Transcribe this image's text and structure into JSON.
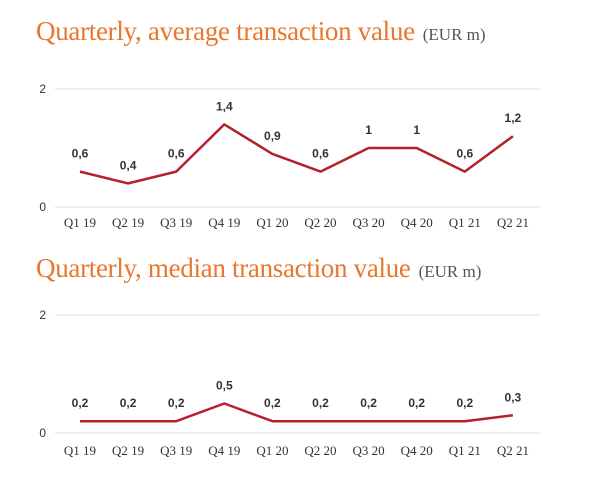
{
  "chart_data": [
    {
      "type": "line",
      "title": "Quarterly, average transaction value",
      "unit": "(EUR m)",
      "categories": [
        "Q1 19",
        "Q2 19",
        "Q3 19",
        "Q4 19",
        "Q1 20",
        "Q2 20",
        "Q3 20",
        "Q4 20",
        "Q1 21",
        "Q2 21"
      ],
      "values": [
        0.6,
        0.4,
        0.6,
        1.4,
        0.9,
        0.6,
        1.0,
        1.0,
        0.6,
        1.2
      ],
      "value_labels": [
        "0,6",
        "0,4",
        "0,6",
        "1,4",
        "0,9",
        "0,6",
        "1",
        "1",
        "0,6",
        "1,2"
      ],
      "yticks": [
        "0",
        "2"
      ],
      "ylim": [
        0,
        2
      ],
      "grid": true,
      "line_color": "#b5202e"
    },
    {
      "type": "line",
      "title": "Quarterly, median transaction value",
      "unit": "(EUR m)",
      "categories": [
        "Q1 19",
        "Q2 19",
        "Q3 19",
        "Q4 19",
        "Q1 20",
        "Q2 20",
        "Q3 20",
        "Q4 20",
        "Q1 21",
        "Q2 21"
      ],
      "values": [
        0.2,
        0.2,
        0.2,
        0.5,
        0.2,
        0.2,
        0.2,
        0.2,
        0.2,
        0.3
      ],
      "value_labels": [
        "0,2",
        "0,2",
        "0,2",
        "0,5",
        "0,2",
        "0,2",
        "0,2",
        "0,2",
        "0,2",
        "0,3"
      ],
      "yticks": [
        "0",
        "2"
      ],
      "ylim": [
        0,
        2
      ],
      "grid": true,
      "line_color": "#b5202e"
    }
  ]
}
